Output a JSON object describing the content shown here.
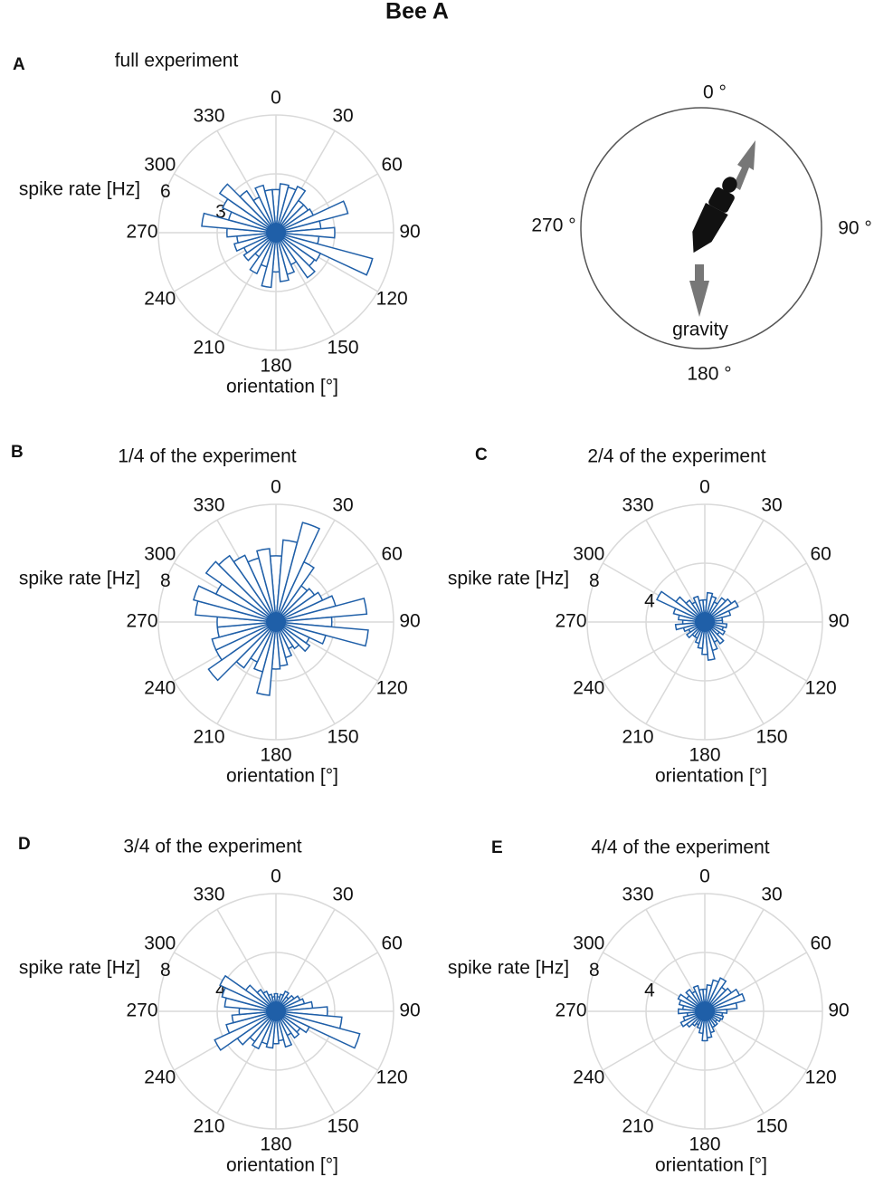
{
  "title": "Bee A",
  "orientation_diagram": {
    "labels": [
      "0 °",
      "90 °",
      "180 °",
      "270 °"
    ],
    "gravity_label": "gravity"
  },
  "chart_data": [
    {
      "panel": "A",
      "title": "full experiment",
      "type": "polar",
      "color": "#1f5fa8",
      "x": [
        0,
        10,
        20,
        30,
        40,
        50,
        60,
        70,
        80,
        90,
        100,
        110,
        120,
        130,
        140,
        150,
        160,
        170,
        180,
        190,
        200,
        210,
        220,
        230,
        240,
        250,
        260,
        270,
        280,
        290,
        300,
        310,
        320,
        330,
        340,
        350
      ],
      "values": [
        2.2,
        2.5,
        2.4,
        2.6,
        2.0,
        2.0,
        2.1,
        3.8,
        2.3,
        3.0,
        2.2,
        5.1,
        2.5,
        2.4,
        2.8,
        1.8,
        2.2,
        2.5,
        2.0,
        2.8,
        1.8,
        2.3,
        1.5,
        2.0,
        1.8,
        2.2,
        2.0,
        2.5,
        3.8,
        2.5,
        3.0,
        3.5,
        2.6,
        2.0,
        2.5,
        2.2
      ],
      "rlim": [
        0,
        6
      ],
      "rticks": [
        3,
        6
      ],
      "thetaticks": [
        0,
        30,
        60,
        90,
        120,
        150,
        180,
        210,
        240,
        270,
        300,
        330
      ],
      "r_label": "spike rate [Hz]",
      "theta_label": "orientation [°]"
    },
    {
      "panel": "B",
      "title": "1/4 of the experiment",
      "type": "polar",
      "color": "#1f5fa8",
      "x": [
        0,
        10,
        20,
        30,
        40,
        50,
        60,
        70,
        80,
        90,
        100,
        110,
        120,
        130,
        140,
        150,
        160,
        170,
        180,
        190,
        200,
        210,
        220,
        230,
        240,
        250,
        260,
        270,
        280,
        290,
        300,
        310,
        320,
        330,
        340,
        350
      ],
      "values": [
        4.5,
        5.6,
        7.0,
        4.5,
        3.0,
        3.2,
        3.5,
        4.2,
        6.2,
        3.8,
        6.3,
        3.5,
        2.5,
        2.8,
        2.2,
        2.0,
        2.5,
        3.0,
        3.2,
        5.0,
        3.5,
        3.0,
        3.8,
        5.6,
        4.5,
        4.5,
        4.0,
        4.0,
        5.5,
        5.8,
        4.5,
        5.8,
        5.5,
        5.0,
        4.5,
        5.0
      ],
      "rlim": [
        0,
        8
      ],
      "rticks": [
        4,
        8
      ],
      "thetaticks": [
        0,
        30,
        60,
        90,
        120,
        150,
        180,
        210,
        240,
        270,
        300,
        330
      ],
      "r_label": "spike rate [Hz]",
      "theta_label": "orientation [°]"
    },
    {
      "panel": "C",
      "title": "2/4 of the experiment",
      "type": "polar",
      "color": "#1f5fa8",
      "x": [
        0,
        10,
        20,
        30,
        40,
        50,
        60,
        70,
        80,
        90,
        100,
        110,
        120,
        130,
        140,
        150,
        160,
        170,
        180,
        190,
        200,
        210,
        220,
        230,
        240,
        250,
        260,
        270,
        280,
        290,
        300,
        310,
        320,
        330,
        340,
        350
      ],
      "values": [
        1.5,
        2.0,
        1.8,
        1.5,
        2.0,
        2.2,
        2.5,
        1.8,
        1.2,
        1.2,
        1.5,
        1.3,
        1.5,
        1.2,
        1.8,
        1.5,
        2.0,
        2.6,
        2.2,
        1.8,
        1.5,
        1.2,
        1.2,
        1.5,
        1.2,
        1.5,
        2.0,
        1.5,
        1.8,
        2.2,
        3.6,
        2.4,
        1.8,
        1.5,
        1.8,
        1.5
      ],
      "rlim": [
        0,
        8
      ],
      "rticks": [
        4,
        8
      ],
      "thetaticks": [
        0,
        30,
        60,
        90,
        120,
        150,
        180,
        210,
        240,
        270,
        300,
        330
      ],
      "r_label": "spike rate [Hz]",
      "theta_label": "orientation [°]"
    },
    {
      "panel": "D",
      "title": "3/4 of the experiment",
      "type": "polar",
      "color": "#1f5fa8",
      "x": [
        0,
        10,
        20,
        30,
        40,
        50,
        60,
        70,
        80,
        90,
        100,
        110,
        120,
        130,
        140,
        150,
        160,
        170,
        180,
        190,
        200,
        210,
        220,
        230,
        240,
        250,
        260,
        270,
        280,
        290,
        300,
        310,
        320,
        330,
        340,
        350
      ],
      "values": [
        1.2,
        1.0,
        1.2,
        1.5,
        1.2,
        1.5,
        1.8,
        2.0,
        2.5,
        3.5,
        4.5,
        5.9,
        2.5,
        2.0,
        2.2,
        1.8,
        2.5,
        2.0,
        2.2,
        2.5,
        2.3,
        2.8,
        2.5,
        3.2,
        4.6,
        3.5,
        3.0,
        2.5,
        3.5,
        3.8,
        4.2,
        2.5,
        1.8,
        1.5,
        1.2,
        1.0
      ],
      "rlim": [
        0,
        8
      ],
      "rticks": [
        4,
        8
      ],
      "thetaticks": [
        0,
        30,
        60,
        90,
        120,
        150,
        180,
        210,
        240,
        270,
        300,
        330
      ],
      "r_label": "spike rate [Hz]",
      "theta_label": "orientation [°]"
    },
    {
      "panel": "E",
      "title": "4/4 of the experiment",
      "type": "polar",
      "color": "#1f5fa8",
      "x": [
        0,
        10,
        20,
        30,
        40,
        50,
        60,
        70,
        80,
        90,
        100,
        110,
        120,
        130,
        140,
        150,
        160,
        170,
        180,
        190,
        200,
        210,
        220,
        230,
        240,
        250,
        260,
        270,
        280,
        290,
        300,
        310,
        320,
        330,
        340,
        350
      ],
      "values": [
        1.5,
        1.8,
        2.2,
        2.5,
        2.0,
        2.2,
        2.6,
        2.8,
        2.2,
        1.5,
        1.2,
        1.3,
        1.2,
        1.0,
        1.2,
        1.2,
        1.5,
        1.8,
        2.0,
        1.5,
        1.2,
        1.0,
        1.2,
        1.5,
        1.8,
        1.5,
        1.2,
        1.8,
        1.5,
        1.8,
        2.0,
        1.5,
        1.8,
        1.5,
        1.8,
        1.5
      ],
      "rlim": [
        0,
        8
      ],
      "rticks": [
        4,
        8
      ],
      "thetaticks": [
        0,
        30,
        60,
        90,
        120,
        150,
        180,
        210,
        240,
        270,
        300,
        330
      ],
      "r_label": "spike rate [Hz]",
      "theta_label": "orientation [°]"
    }
  ]
}
